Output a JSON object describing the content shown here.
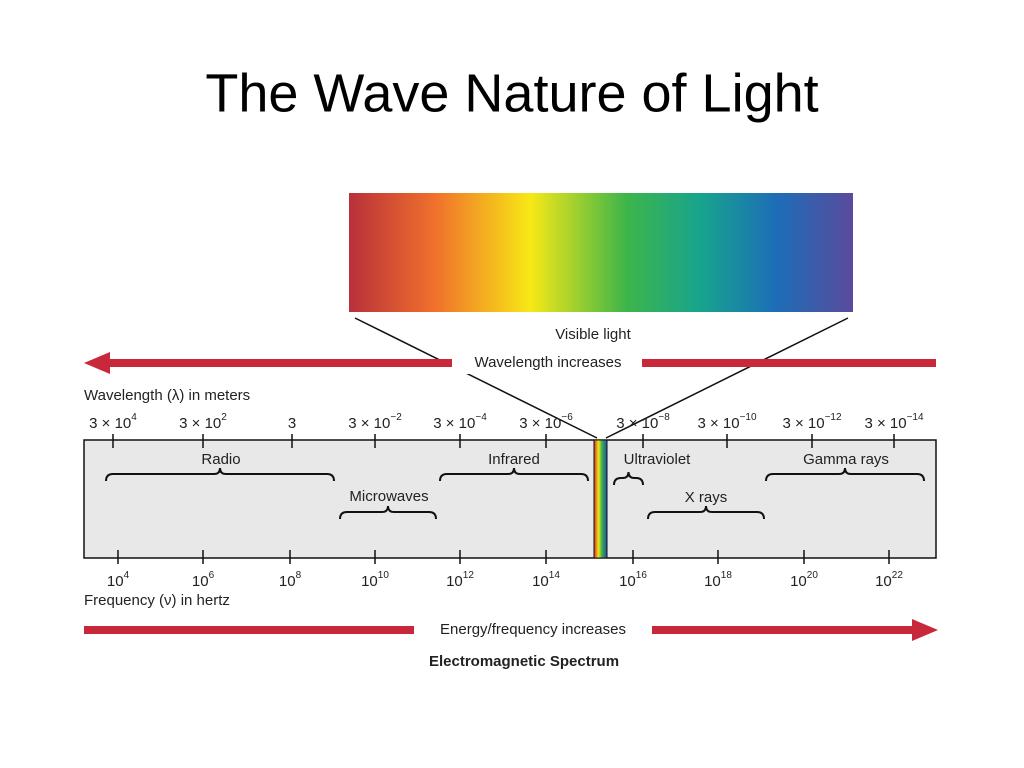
{
  "title": "The Wave Nature of Light",
  "diagram": {
    "visible_label": "Visible light",
    "wavelength_arrow": "Wavelength increases",
    "wavelength_axis": "Wavelength (λ) in meters",
    "wavelength_ticks": [
      {
        "mantissa": "3 × 10",
        "exponent": "4"
      },
      {
        "mantissa": "3 × 10",
        "exponent": "2"
      },
      {
        "mantissa": "3",
        "exponent": null
      },
      {
        "mantissa": "3 × 10",
        "exponent": "−2"
      },
      {
        "mantissa": "3 × 10",
        "exponent": "−4"
      },
      {
        "mantissa": "3 × 10",
        "exponent": "−6"
      },
      {
        "mantissa": "3 × 10",
        "exponent": "−8"
      },
      {
        "mantissa": "3 × 10",
        "exponent": "−10"
      },
      {
        "mantissa": "3 × 10",
        "exponent": "−12"
      },
      {
        "mantissa": "3 × 10",
        "exponent": "−14"
      }
    ],
    "regions": [
      "Radio",
      "Microwaves",
      "Infrared",
      "Ultraviolet",
      "X rays",
      "Gamma rays"
    ],
    "frequency_ticks": [
      {
        "mantissa": "10",
        "exponent": "4"
      },
      {
        "mantissa": "10",
        "exponent": "6"
      },
      {
        "mantissa": "10",
        "exponent": "8"
      },
      {
        "mantissa": "10",
        "exponent": "10"
      },
      {
        "mantissa": "10",
        "exponent": "12"
      },
      {
        "mantissa": "10",
        "exponent": "14"
      },
      {
        "mantissa": "10",
        "exponent": "16"
      },
      {
        "mantissa": "10",
        "exponent": "18"
      },
      {
        "mantissa": "10",
        "exponent": "20"
      },
      {
        "mantissa": "10",
        "exponent": "22"
      }
    ],
    "frequency_axis": "Frequency (ν) in hertz",
    "energy_arrow": "Energy/frequency increases",
    "caption": "Electromagnetic Spectrum"
  }
}
